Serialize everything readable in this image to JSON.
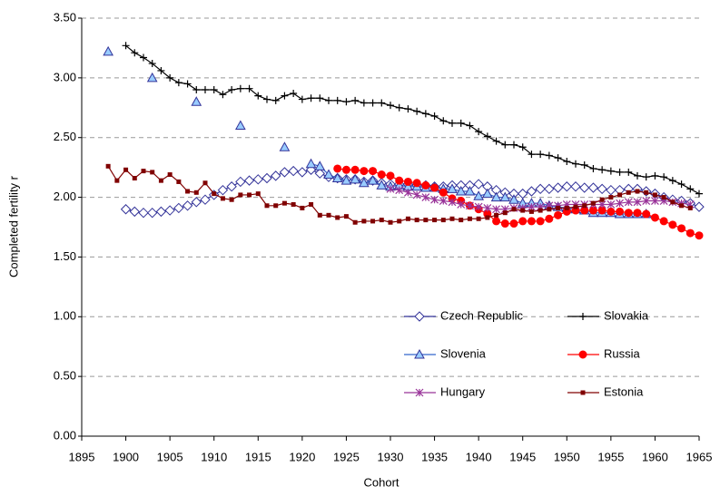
{
  "chart_data": {
    "type": "line",
    "xlabel": "Cohort",
    "ylabel": "Completed fertility r",
    "x": [
      1898,
      1899,
      1900,
      1901,
      1902,
      1903,
      1904,
      1905,
      1906,
      1907,
      1908,
      1909,
      1910,
      1911,
      1912,
      1913,
      1914,
      1915,
      1916,
      1917,
      1918,
      1919,
      1920,
      1921,
      1922,
      1923,
      1924,
      1925,
      1926,
      1927,
      1928,
      1929,
      1930,
      1931,
      1932,
      1933,
      1934,
      1935,
      1936,
      1937,
      1938,
      1939,
      1940,
      1941,
      1942,
      1943,
      1944,
      1945,
      1946,
      1947,
      1948,
      1949,
      1950,
      1951,
      1952,
      1953,
      1954,
      1955,
      1956,
      1957,
      1958,
      1959,
      1960,
      1961,
      1962,
      1963,
      1964,
      1965
    ],
    "xlim": [
      1895,
      1965
    ],
    "xticks": [
      1895,
      1900,
      1905,
      1910,
      1915,
      1920,
      1925,
      1930,
      1935,
      1940,
      1945,
      1950,
      1955,
      1960,
      1965
    ],
    "ylim": [
      0,
      3.5
    ],
    "yticks": [
      {
        "value": 0,
        "label": "0.00"
      },
      {
        "value": 0.5,
        "label": "0.50"
      },
      {
        "value": 1,
        "label": "1.00"
      },
      {
        "value": 1.5,
        "label": "1.50"
      },
      {
        "value": 2,
        "label": "2.00"
      },
      {
        "value": 2.5,
        "label": "2.50"
      },
      {
        "value": 3,
        "label": "3.00"
      },
      {
        "value": 3.5,
        "label": "3.50"
      }
    ],
    "grid": true,
    "legend": "lower right",
    "series": [
      {
        "name": "Czech Republic",
        "color": "#333399",
        "marker": "diamond",
        "values": [
          null,
          null,
          1.9,
          1.88,
          1.87,
          1.87,
          1.88,
          1.89,
          1.91,
          1.93,
          1.96,
          1.98,
          2.02,
          2.06,
          2.09,
          2.13,
          2.14,
          2.15,
          2.16,
          2.18,
          2.21,
          2.22,
          2.21,
          2.23,
          2.2,
          2.17,
          2.16,
          2.15,
          2.15,
          2.13,
          2.14,
          2.12,
          2.11,
          2.11,
          2.11,
          2.1,
          2.1,
          2.09,
          2.09,
          2.1,
          2.1,
          2.1,
          2.11,
          2.09,
          2.06,
          2.04,
          2.03,
          2.03,
          2.05,
          2.07,
          2.07,
          2.08,
          2.09,
          2.09,
          2.08,
          2.08,
          2.07,
          2.06,
          2.06,
          2.07,
          2.07,
          2.05,
          2.03,
          2.0,
          1.98,
          1.97,
          1.95,
          1.92
        ]
      },
      {
        "name": "Slovakia",
        "color": "#000000",
        "marker": "plus",
        "values": [
          null,
          null,
          3.27,
          3.21,
          3.17,
          3.12,
          3.06,
          3.0,
          2.96,
          2.95,
          2.9,
          2.9,
          2.9,
          2.86,
          2.9,
          2.91,
          2.91,
          2.85,
          2.82,
          2.81,
          2.85,
          2.87,
          2.82,
          2.83,
          2.83,
          2.81,
          2.81,
          2.8,
          2.81,
          2.79,
          2.79,
          2.79,
          2.77,
          2.75,
          2.74,
          2.72,
          2.7,
          2.68,
          2.64,
          2.62,
          2.62,
          2.6,
          2.55,
          2.51,
          2.47,
          2.44,
          2.44,
          2.42,
          2.36,
          2.36,
          2.35,
          2.33,
          2.3,
          2.28,
          2.27,
          2.24,
          2.23,
          2.22,
          2.21,
          2.21,
          2.18,
          2.17,
          2.18,
          2.17,
          2.14,
          2.11,
          2.07,
          2.03
        ]
      },
      {
        "name": "Slovenia",
        "color": "#3366cc",
        "marker": "triangle",
        "values": [
          3.22,
          null,
          null,
          null,
          null,
          3.0,
          null,
          null,
          null,
          null,
          2.8,
          null,
          null,
          null,
          null,
          2.6,
          null,
          null,
          null,
          null,
          2.42,
          null,
          null,
          2.28,
          2.26,
          2.19,
          2.16,
          2.14,
          2.15,
          2.12,
          2.14,
          2.1,
          2.09,
          2.1,
          2.09,
          2.09,
          2.08,
          2.08,
          2.07,
          2.07,
          2.05,
          2.05,
          2.01,
          2.03,
          2.0,
          2.0,
          1.98,
          1.95,
          1.95,
          1.95,
          1.93,
          1.92,
          1.91,
          1.9,
          1.89,
          1.87,
          1.87,
          1.87,
          1.86,
          1.86,
          1.86,
          1.86,
          null,
          null,
          null,
          null,
          null,
          null
        ]
      },
      {
        "name": "Russia",
        "color": "#ff0000",
        "marker": "circle",
        "values": [
          null,
          null,
          null,
          null,
          null,
          null,
          null,
          null,
          null,
          null,
          null,
          null,
          null,
          null,
          null,
          null,
          null,
          null,
          null,
          null,
          null,
          null,
          null,
          null,
          null,
          null,
          2.24,
          2.23,
          2.23,
          2.22,
          2.22,
          2.19,
          2.18,
          2.14,
          2.13,
          2.12,
          2.1,
          2.08,
          2.04,
          1.99,
          1.97,
          1.93,
          1.9,
          1.86,
          1.8,
          1.78,
          1.78,
          1.8,
          1.8,
          1.8,
          1.82,
          1.85,
          1.88,
          1.89,
          1.89,
          1.89,
          1.89,
          1.88,
          1.88,
          1.87,
          1.87,
          1.86,
          1.83,
          1.8,
          1.77,
          1.74,
          1.7,
          1.68
        ]
      },
      {
        "name": "Hungary",
        "color": "#993399",
        "marker": "star",
        "values": [
          null,
          null,
          null,
          null,
          null,
          null,
          null,
          null,
          null,
          null,
          null,
          null,
          null,
          null,
          null,
          null,
          null,
          null,
          null,
          null,
          null,
          null,
          null,
          null,
          null,
          null,
          null,
          null,
          null,
          null,
          null,
          null,
          2.07,
          2.06,
          2.04,
          2.02,
          2.0,
          1.98,
          1.97,
          1.96,
          1.94,
          1.93,
          1.92,
          1.91,
          1.9,
          1.9,
          1.91,
          1.91,
          1.92,
          1.92,
          1.93,
          1.93,
          1.94,
          1.94,
          1.94,
          1.94,
          1.94,
          1.94,
          1.95,
          1.96,
          1.96,
          1.97,
          1.97,
          1.97,
          1.96,
          1.95,
          1.94,
          null
        ]
      },
      {
        "name": "Estonia",
        "color": "#800000",
        "marker": "square",
        "values": [
          2.26,
          2.14,
          2.23,
          2.16,
          2.22,
          2.21,
          2.14,
          2.19,
          2.13,
          2.05,
          2.04,
          2.12,
          2.03,
          1.99,
          1.98,
          2.02,
          2.02,
          2.03,
          1.93,
          1.93,
          1.95,
          1.94,
          1.91,
          1.94,
          1.85,
          1.85,
          1.83,
          1.84,
          1.79,
          1.8,
          1.8,
          1.81,
          1.79,
          1.8,
          1.82,
          1.81,
          1.81,
          1.81,
          1.81,
          1.82,
          1.81,
          1.82,
          1.82,
          1.83,
          1.85,
          1.87,
          1.9,
          1.89,
          1.88,
          1.89,
          1.9,
          1.91,
          1.91,
          1.92,
          1.93,
          1.95,
          1.98,
          2.0,
          2.02,
          2.04,
          2.05,
          2.04,
          2.02,
          2.0,
          1.96,
          1.93,
          1.91,
          null
        ]
      }
    ]
  }
}
